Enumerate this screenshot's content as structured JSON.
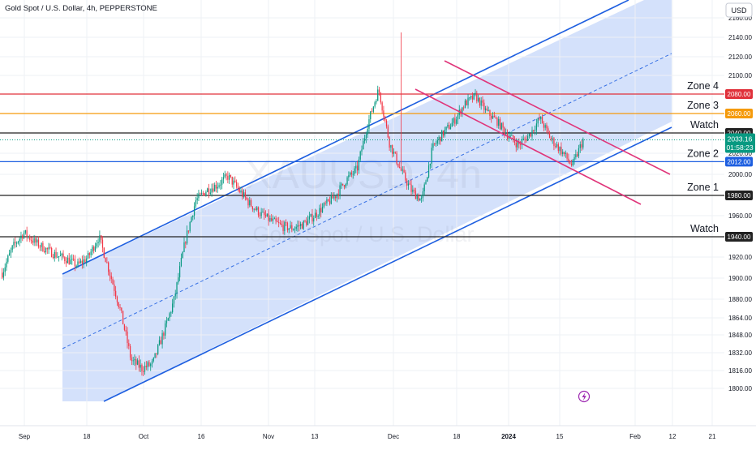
{
  "header": {
    "title": "Gold Spot / U.S. Dollar, 4h, PEPPERSTONE",
    "currency": "USD"
  },
  "watermark": {
    "symbol": "XAUUSD, 4h",
    "name": "Gold Spot / U.S. Dollar"
  },
  "chart_data": {
    "type": "candlestick",
    "y_axis": {
      "ticks": [
        "1800.00",
        "1816.00",
        "1832.00",
        "1848.00",
        "1864.00",
        "1880.00",
        "1900.00",
        "1920.00",
        "1940.00",
        "1960.00",
        "1980.00",
        "2000.00",
        "2020.00",
        "2040.00",
        "2060.00",
        "2080.00",
        "2100.00",
        "2120.00",
        "2140.00",
        "2160.00"
      ]
    },
    "x_axis": {
      "ticks": [
        "Sep",
        "18",
        "Oct",
        "16",
        "Nov",
        "13",
        "Dec",
        "18",
        "2024",
        "15",
        "Feb",
        "12",
        "21"
      ]
    },
    "levels": [
      {
        "name": "Zone 4",
        "value": 2080.0,
        "badge": "2080.00",
        "color": "#e0303a"
      },
      {
        "name": "Zone 3",
        "value": 2060.0,
        "badge": "2060.00",
        "color": "#f59a0a"
      },
      {
        "name": "Watch",
        "value": 2040.0,
        "badge": "2040.00",
        "color": "#222222"
      },
      {
        "name": "Zone 2",
        "value": 2012.0,
        "badge": "2012.00",
        "color": "#1e5fe0"
      },
      {
        "name": "Zone 1",
        "value": 1980.0,
        "badge": "1980.00",
        "color": "#222222"
      },
      {
        "name": "Watch",
        "value": 1940.0,
        "badge": "1940.00",
        "color": "#222222"
      }
    ],
    "current_price": {
      "value": 2033.16,
      "label": "2033.16",
      "countdown": "01:58:23",
      "color": "#089981"
    },
    "close_points": [
      1905,
      1930,
      1944,
      1935,
      1928,
      1922,
      1918,
      1912,
      1920,
      1940,
      1905,
      1870,
      1825,
      1818,
      1822,
      1850,
      1880,
      1935,
      1975,
      1985,
      1990,
      1998,
      1985,
      1972,
      1962,
      1955,
      1950,
      1948,
      1952,
      1960,
      1970,
      1980,
      1995,
      2005,
      2050,
      2085,
      2030,
      2005,
      1985,
      1975,
      2025,
      2040,
      2052,
      2070,
      2078,
      2062,
      2052,
      2038,
      2028,
      2038,
      2055,
      2034,
      2022,
      2008,
      2033
    ],
    "colors": {
      "up": "#089981",
      "down": "#f23645",
      "channel": "#1e5fe0",
      "channel_fill": "#cfdefb",
      "wedge": "#e0357a"
    }
  }
}
